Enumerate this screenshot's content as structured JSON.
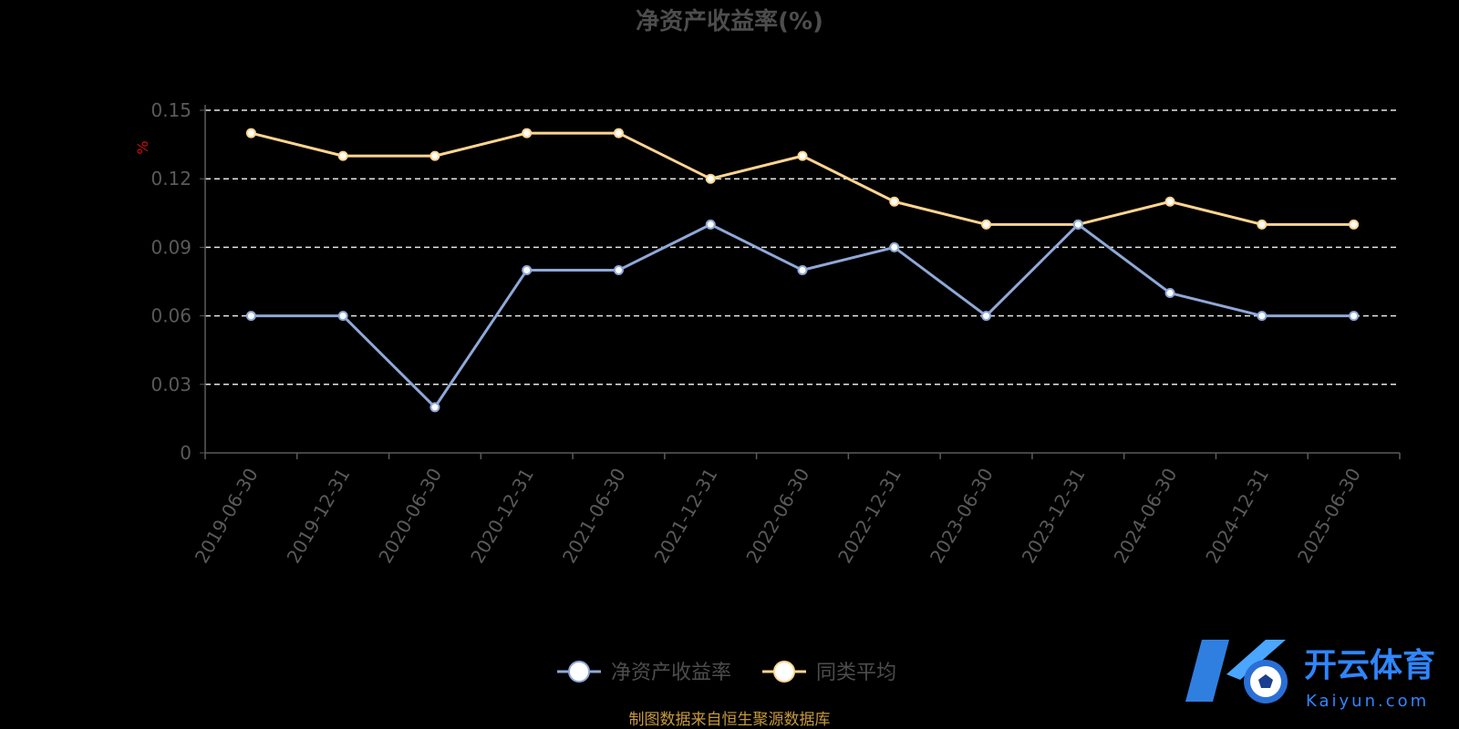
{
  "chart_data": {
    "type": "line",
    "title": "净资产收益率(%)",
    "ylabel": "%",
    "ylim": [
      0,
      0.15
    ],
    "yticks": [
      "0",
      "0.03",
      "0.06",
      "0.09",
      "0.12",
      "0.15"
    ],
    "grid": true,
    "legend_position": "bottom-center",
    "categories": [
      "2019-06-30",
      "2019-12-31",
      "2020-06-30",
      "2020-12-31",
      "2021-06-30",
      "2021-12-31",
      "2022-06-30",
      "2022-12-31",
      "2023-06-30",
      "2023-12-31",
      "2024-06-30",
      "2024-12-31",
      "2025-06-30"
    ],
    "series": [
      {
        "name": "净资产收益率",
        "color": "#8fa8d8",
        "values": [
          0.06,
          0.06,
          0.02,
          0.08,
          0.08,
          0.1,
          0.08,
          0.09,
          0.06,
          0.1,
          0.07,
          0.06,
          0.06
        ]
      },
      {
        "name": "同类平均",
        "color": "#ffd591",
        "values": [
          0.14,
          0.13,
          0.13,
          0.14,
          0.14,
          0.12,
          0.13,
          0.11,
          0.1,
          0.1,
          0.11,
          0.1,
          0.1
        ]
      }
    ]
  },
  "source_note": "制图数据来自恒生聚源数据库",
  "watermark": {
    "brand": "开云体育",
    "domain": "Kaiyun.com"
  }
}
